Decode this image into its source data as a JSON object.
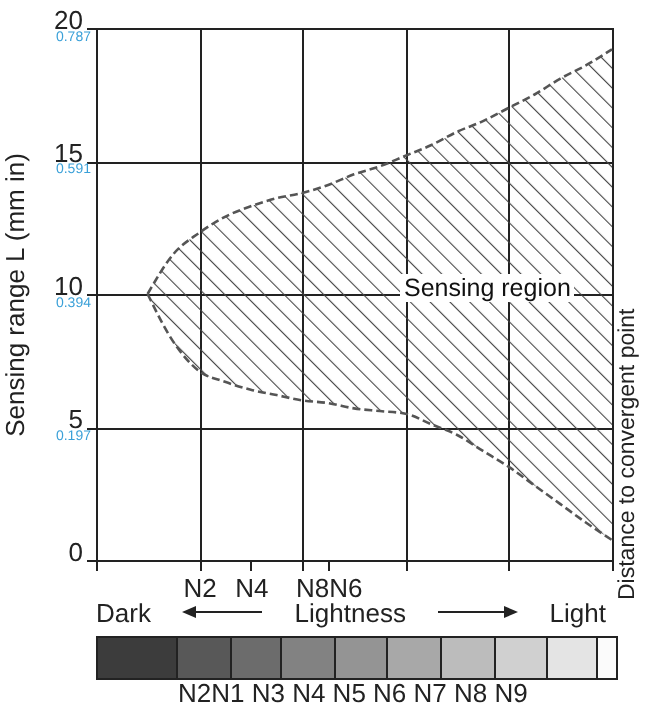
{
  "chart_data": {
    "type": "line",
    "ylabel": "Sensing range L (mm in)",
    "categories": [
      null,
      null,
      null,
      null,
      "N2",
      null,
      "N4",
      null,
      null,
      "N8N6",
      null,
      null,
      null,
      null,
      null,
      null,
      null,
      null,
      null,
      null,
      null
    ],
    "series": [
      {
        "color": "#555555",
        "line_style": "dashed",
        "values": [
          null,
          null,
          10,
          11.5,
          12.3,
          12.9,
          13.3,
          13.6,
          13.8,
          14.1,
          14.5,
          14.8,
          15.2,
          15.6,
          16.1,
          16.5,
          17.0,
          17.5,
          18.1,
          18.6,
          19.2
        ],
        "upper": [
          null,
          null,
          10,
          11.5,
          12.3,
          12.9,
          13.3,
          13.6,
          13.8,
          14.1,
          14.5,
          14.8,
          15.2,
          15.6,
          16.1,
          16.5,
          17.0,
          17.5,
          18.1,
          18.6,
          19.2
        ],
        "lower": [
          null,
          null,
          10,
          8.2,
          7.1,
          6.7,
          6.4,
          6.2,
          6.0,
          5.9,
          5.7,
          5.6,
          5.5,
          5.1,
          4.7,
          4.1,
          3.5,
          2.8,
          2.1,
          1.4,
          0.75
        ]
      },
      {
        "color": "#555555",
        "line_style": "dashed",
        "values": [
          null,
          null,
          10,
          8.2,
          7.1,
          6.7,
          6.4,
          6.2,
          6.0,
          5.9,
          5.7,
          5.6,
          5.5,
          5.1,
          4.7,
          4.1,
          3.5,
          2.8,
          2.1,
          1.4,
          0.75
        ]
      }
    ],
    "ylim": [
      0,
      20
    ],
    "yticks": [
      0,
      5,
      10,
      15,
      20
    ],
    "y2lim": [
      0,
      0.787
    ],
    "y2ticks": [
      0.197,
      0.394,
      0.591,
      0.787
    ],
    "grid": true,
    "annotations": [
      "Sensing region",
      "Distance to convergent point",
      "Dark",
      "Lightness",
      "Light",
      "N2N1 N3 N4 N5 N6 N7 N8 N9"
    ]
  }
}
